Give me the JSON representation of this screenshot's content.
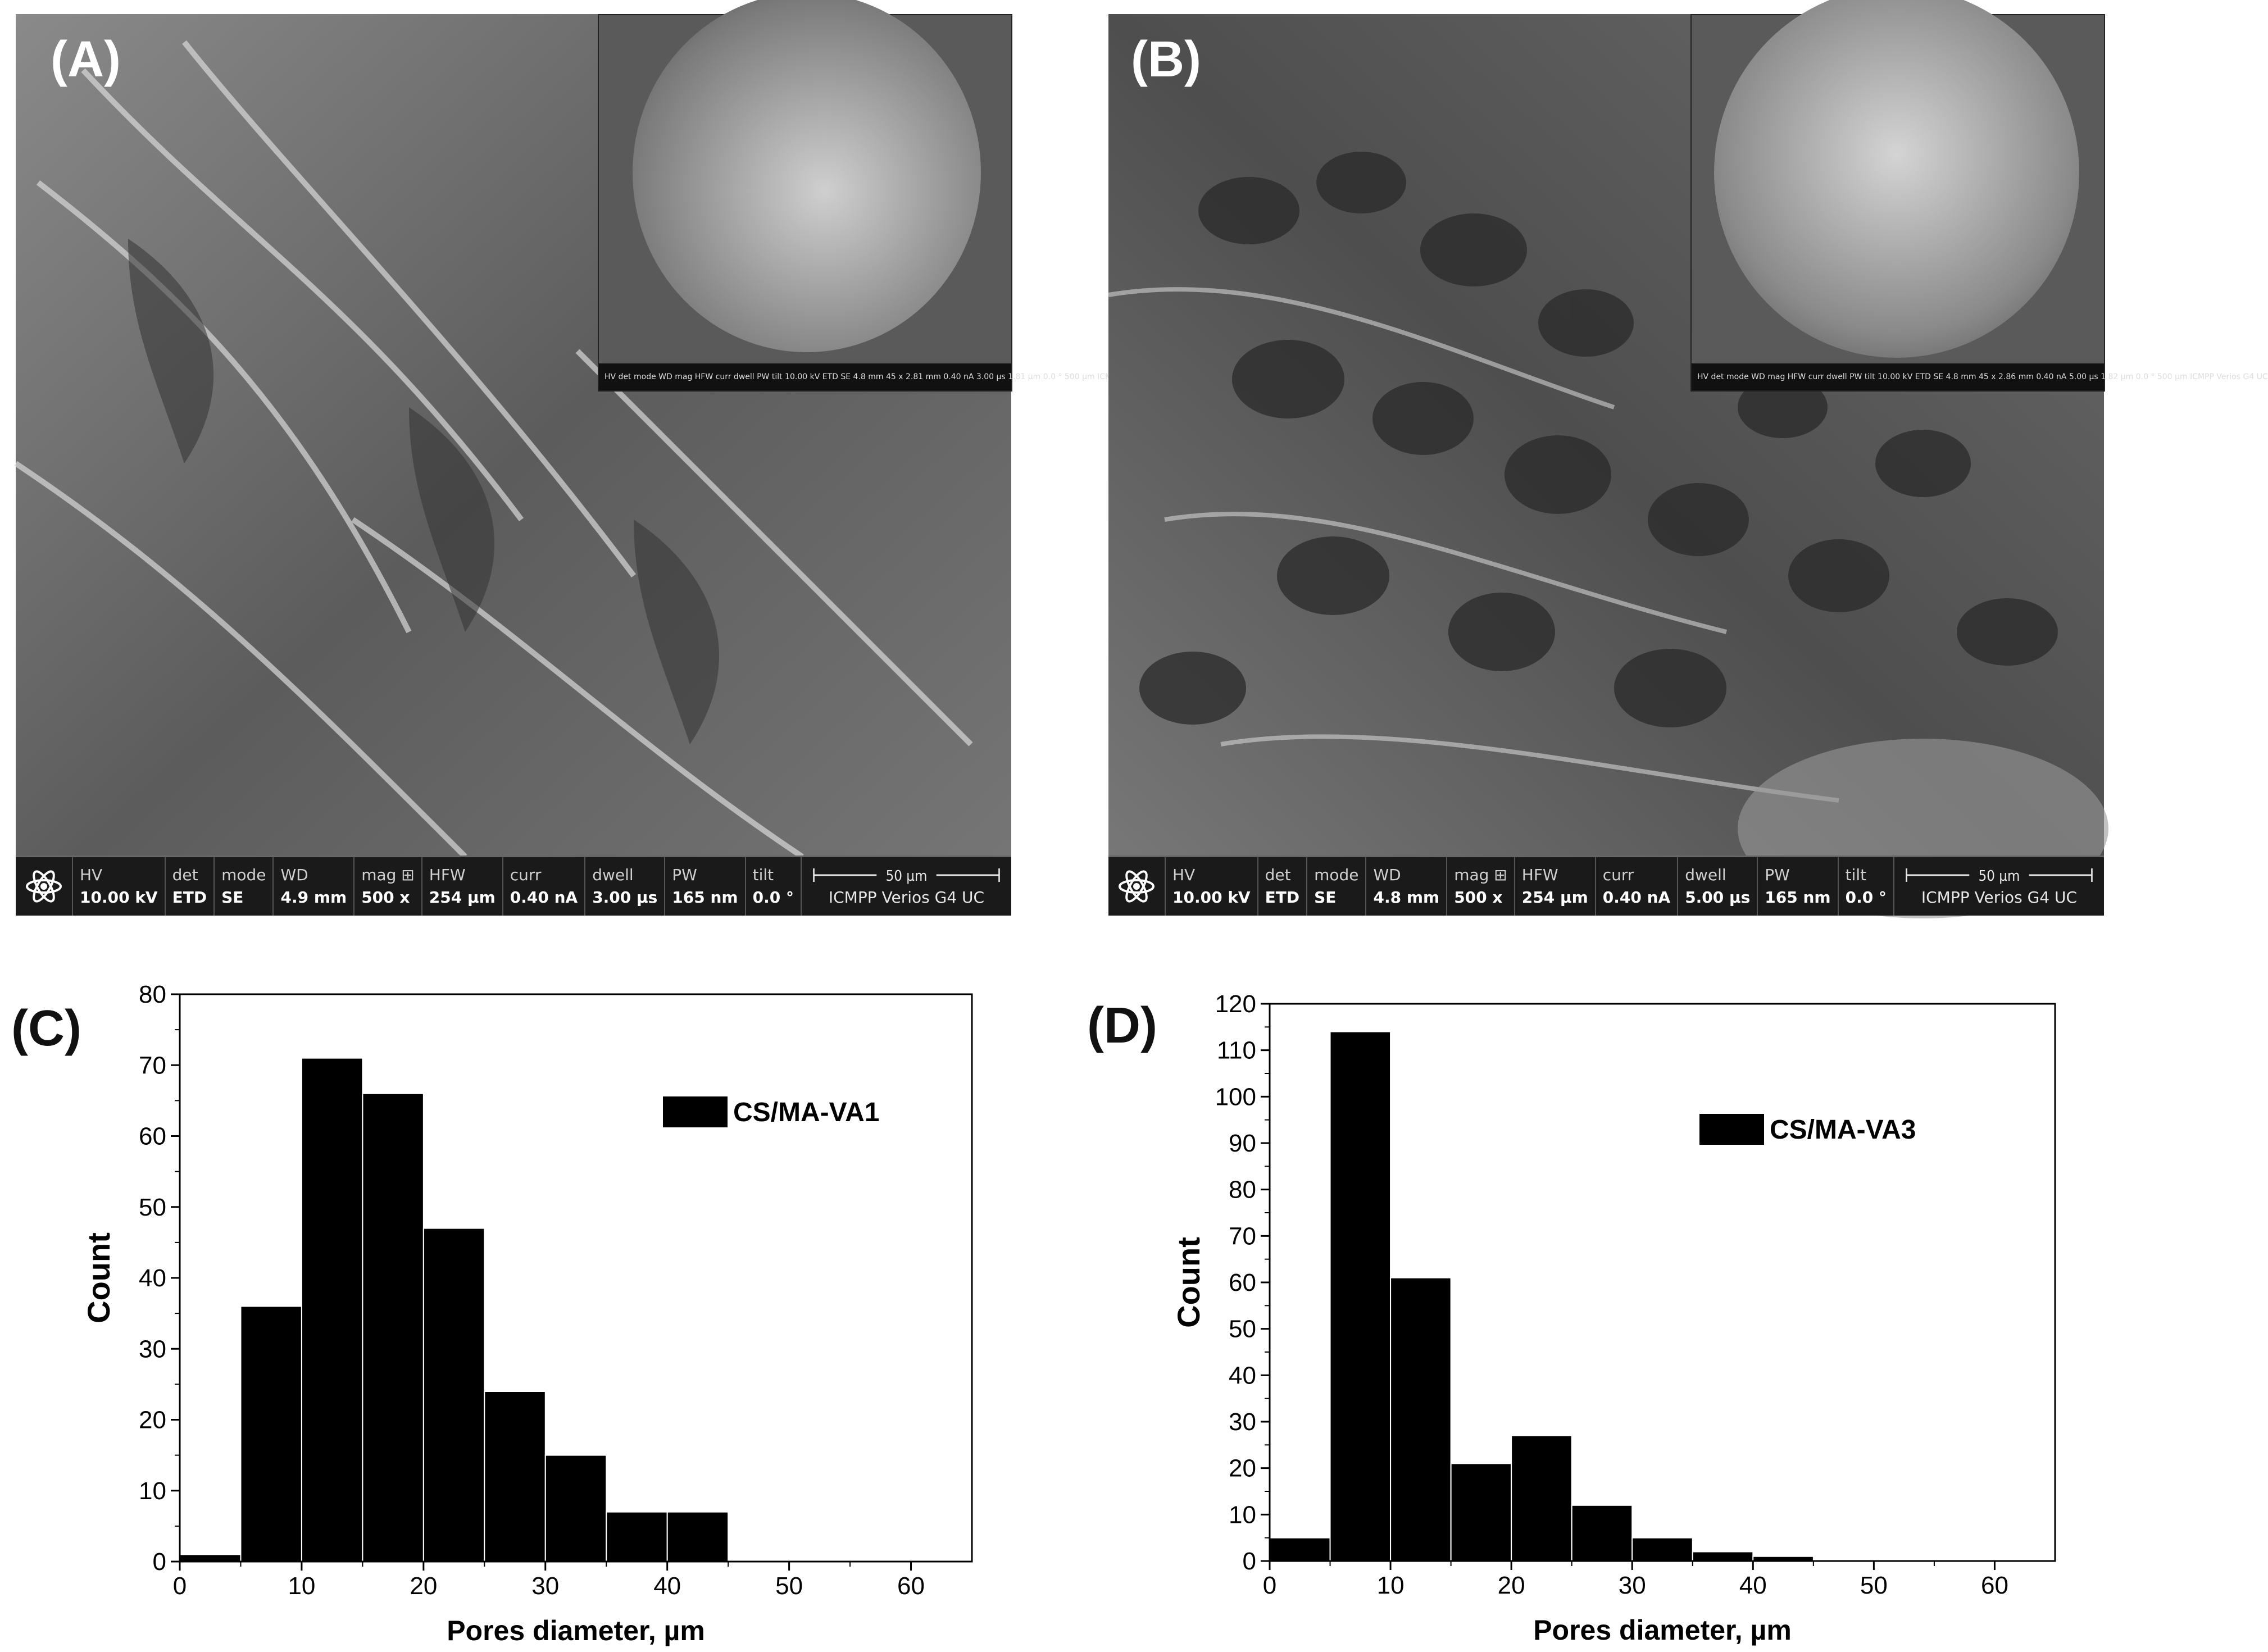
{
  "panels": {
    "A": {
      "letter": "(A)",
      "infobar": {
        "columns": [
          {
            "h": "HV",
            "v": "10.00 kV"
          },
          {
            "h": "det",
            "v": "ETD"
          },
          {
            "h": "mode",
            "v": "SE"
          },
          {
            "h": "WD",
            "v": "4.9 mm"
          },
          {
            "h": "mag ⊞",
            "v": "500 x"
          },
          {
            "h": "HFW",
            "v": "254 µm"
          },
          {
            "h": "curr",
            "v": "0.40 nA"
          },
          {
            "h": "dwell",
            "v": "3.00 µs"
          },
          {
            "h": "PW",
            "v": "165 nm"
          },
          {
            "h": "tilt",
            "v": "0.0 °"
          }
        ],
        "scale_label": "50 µm",
        "instrument": "ICMPP Verios G4 UC"
      },
      "inset_bar": "HV det mode WD mag HFW curr dwell PW tilt 10.00 kV ETD SE 4.8 mm 45 x 2.81 mm 0.40 nA 3.00 µs 1.81 µm 0.0 ° 500 µm ICMPP Verios G4 UC"
    },
    "B": {
      "letter": "(B)",
      "infobar": {
        "columns": [
          {
            "h": "HV",
            "v": "10.00 kV"
          },
          {
            "h": "det",
            "v": "ETD"
          },
          {
            "h": "mode",
            "v": "SE"
          },
          {
            "h": "WD",
            "v": "4.8 mm"
          },
          {
            "h": "mag ⊞",
            "v": "500 x"
          },
          {
            "h": "HFW",
            "v": "254 µm"
          },
          {
            "h": "curr",
            "v": "0.40 nA"
          },
          {
            "h": "dwell",
            "v": "5.00 µs"
          },
          {
            "h": "PW",
            "v": "165 nm"
          },
          {
            "h": "tilt",
            "v": "0.0 °"
          }
        ],
        "scale_label": "50 µm",
        "instrument": "ICMPP Verios G4 UC"
      },
      "inset_bar": "HV det mode WD mag HFW curr dwell PW tilt 10.00 kV ETD SE 4.8 mm 45 x 2.86 mm 0.40 nA 5.00 µs 1.82 µm 0.0 ° 500 µm ICMPP Verios G4 UC"
    },
    "C": {
      "letter": "(C)"
    },
    "D": {
      "letter": "(D)"
    }
  },
  "chart_data": [
    {
      "type": "bar",
      "panel": "C",
      "title": "",
      "xlabel": "Pores diameter, µm",
      "ylabel": "Count",
      "xlim": [
        0,
        65
      ],
      "ylim": [
        0,
        80
      ],
      "xticks": [
        0,
        10,
        20,
        30,
        40,
        50,
        60
      ],
      "yticks": [
        0,
        10,
        20,
        30,
        40,
        50,
        60,
        70,
        80
      ],
      "bin_width": 5,
      "bin_starts": [
        0,
        5,
        10,
        15,
        20,
        25,
        30,
        35,
        40
      ],
      "series": [
        {
          "name": "CS/MA-VA1",
          "values": [
            1,
            36,
            71,
            66,
            47,
            24,
            15,
            7,
            7
          ]
        }
      ],
      "legend_position": "top-right",
      "bar_color": "#000000"
    },
    {
      "type": "bar",
      "panel": "D",
      "title": "",
      "xlabel": "Pores diameter, µm",
      "ylabel": "Count",
      "xlim": [
        0,
        65
      ],
      "ylim": [
        0,
        120
      ],
      "xticks": [
        0,
        10,
        20,
        30,
        40,
        50,
        60
      ],
      "yticks": [
        0,
        10,
        20,
        30,
        40,
        50,
        60,
        70,
        80,
        90,
        100,
        110,
        120
      ],
      "bin_width": 5,
      "bin_starts": [
        0,
        5,
        10,
        15,
        20,
        25,
        30,
        35,
        40
      ],
      "series": [
        {
          "name": "CS/MA-VA3",
          "values": [
            5,
            114,
            61,
            21,
            27,
            12,
            5,
            2,
            1
          ]
        }
      ],
      "legend_position": "top-right",
      "bar_color": "#000000"
    }
  ]
}
